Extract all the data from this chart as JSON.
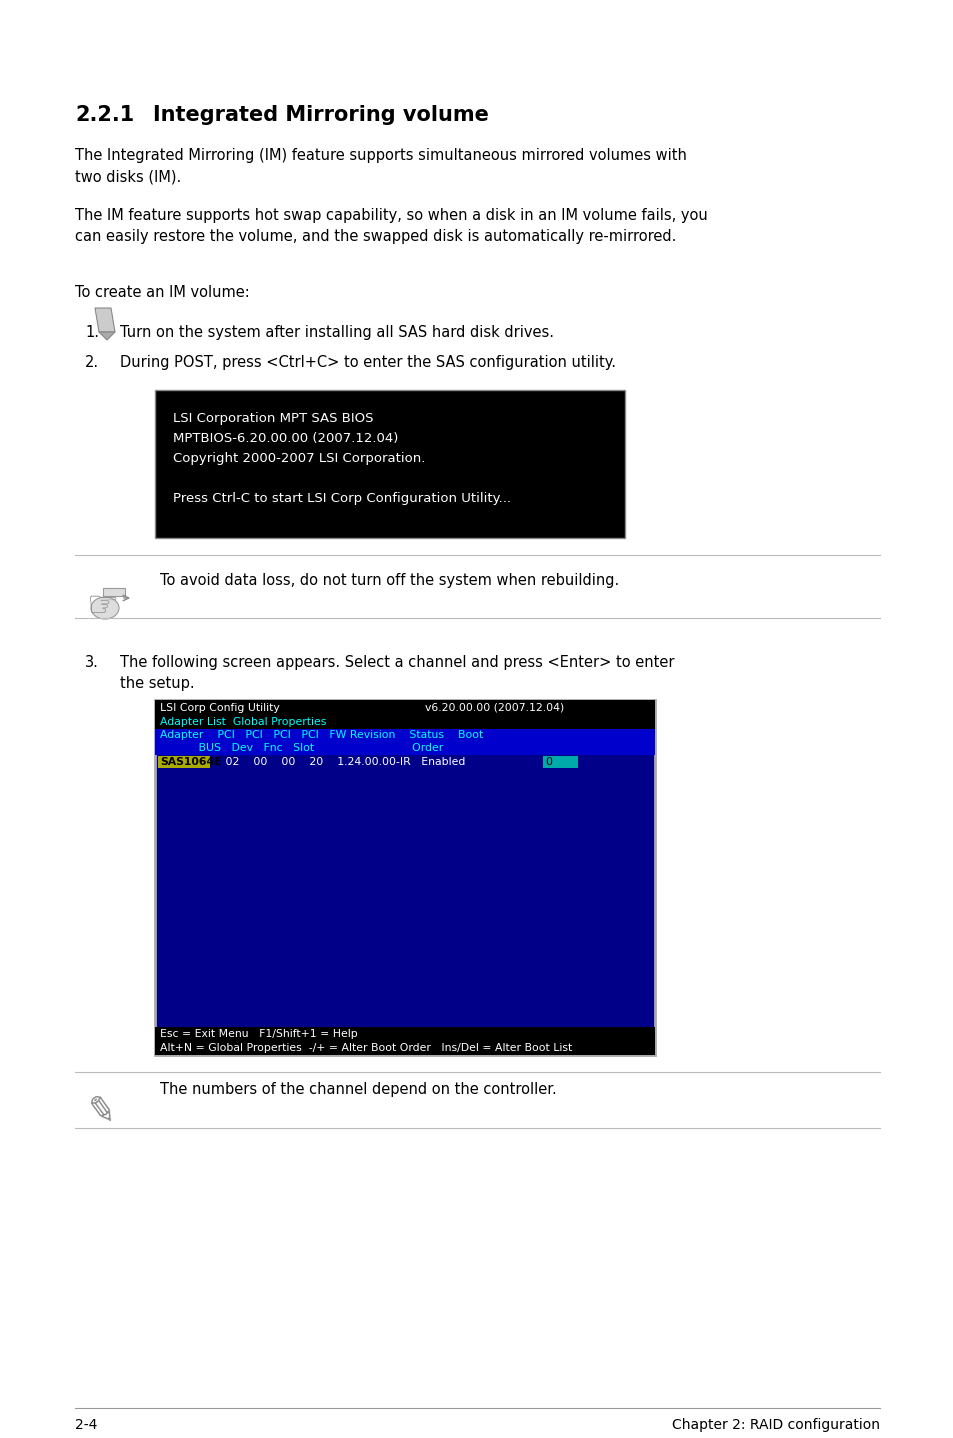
{
  "bg_color": "#ffffff",
  "title_number": "2.2.1",
  "title_text": "Integrated Mirroring volume",
  "para1_line1": "The Integrated Mirroring (IM) feature supports simultaneous mirrored volumes with",
  "para1_line2": "two disks (IM).",
  "para2_line1": "The IM feature supports hot swap capability, so when a disk in an IM volume fails, you",
  "para2_line2": "can easily restore the volume, and the swapped disk is automatically re-mirrored.",
  "intro": "To create an IM volume:",
  "step1": "Turn on the system after installing all SAS hard disk drives.",
  "step2": "During POST, press <Ctrl+C> to enter the SAS configuration utility.",
  "bios_lines": [
    "LSI Corporation MPT SAS BIOS",
    "MPTBIOS-6.20.00.00 (2007.12.04)",
    "Copyright 2000-2007 LSI Corporation.",
    "",
    "Press Ctrl-C to start LSI Corp Configuration Utility..."
  ],
  "note1": "To avoid data loss, do not turn off the system when rebuilding.",
  "step3_line1": "The following screen appears. Select a channel and press <Enter> to enter",
  "step3_line2": "the setup.",
  "screen_title_left": "LSI Corp Config Utility",
  "screen_title_right": "v6.20.00.00 (2007.12.04)",
  "screen_menu": "Adapter List  Global Properties",
  "note2": "The numbers of the channel depend on the controller.",
  "footer_left": "2-4",
  "footer_right": "Chapter 2: RAID configuration"
}
